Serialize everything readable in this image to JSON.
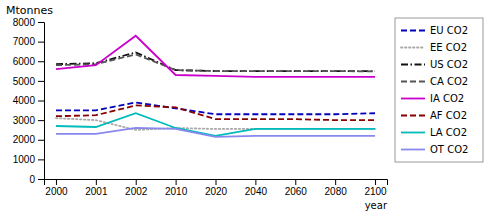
{
  "chart_data": {
    "type": "line",
    "title": "",
    "x_label": "year",
    "y_label": "Mtonnes",
    "categories": [
      "2000",
      "2001",
      "2002",
      "2010",
      "2020",
      "2040",
      "2060",
      "2080",
      "2100"
    ],
    "series": [
      {
        "name": "EU CO2",
        "color": "#0000bb",
        "line_style": "dashed",
        "values": [
          3500,
          3500,
          3900,
          3600,
          3300,
          3300,
          3300,
          3300,
          3350
        ]
      },
      {
        "name": "EE CO2",
        "color": "#aaaaaa",
        "line_style": "dotted",
        "values": [
          3100,
          3000,
          2500,
          2600,
          2550,
          2550,
          2550,
          2550,
          2550
        ]
      },
      {
        "name": "US CO2",
        "color": "#111111",
        "line_style": "dashdot",
        "values": [
          5850,
          5900,
          6450,
          5550,
          5500,
          5500,
          5500,
          5500,
          5500
        ]
      },
      {
        "name": "CA CO2",
        "color": "#555555",
        "line_style": "dashed",
        "values": [
          5800,
          5850,
          6350,
          5550,
          5500,
          5500,
          5500,
          5500,
          5480
        ]
      },
      {
        "name": "IA CO2",
        "color": "#cc00cc",
        "line_style": "solid",
        "values": [
          5600,
          5800,
          7300,
          5300,
          5250,
          5200,
          5200,
          5200,
          5200
        ]
      },
      {
        "name": "AF CO2",
        "color": "#880000",
        "line_style": "dashed",
        "values": [
          3200,
          3250,
          3750,
          3650,
          3050,
          3050,
          3050,
          3000,
          3000
        ]
      },
      {
        "name": "LA CO2",
        "color": "#00bbbb",
        "line_style": "solid",
        "values": [
          2700,
          2650,
          3350,
          2600,
          2200,
          2550,
          2550,
          2550,
          2550
        ]
      },
      {
        "name": "OT CO2",
        "color": "#8888ee",
        "line_style": "solid",
        "values": [
          2300,
          2300,
          2600,
          2550,
          2150,
          2200,
          2200,
          2200,
          2200
        ]
      }
    ],
    "ylim": [
      0,
      8000
    ],
    "yticks": [
      0,
      1000,
      2000,
      3000,
      4000,
      5000,
      6000,
      7000,
      8000
    ],
    "grid": false,
    "legend": "right"
  }
}
